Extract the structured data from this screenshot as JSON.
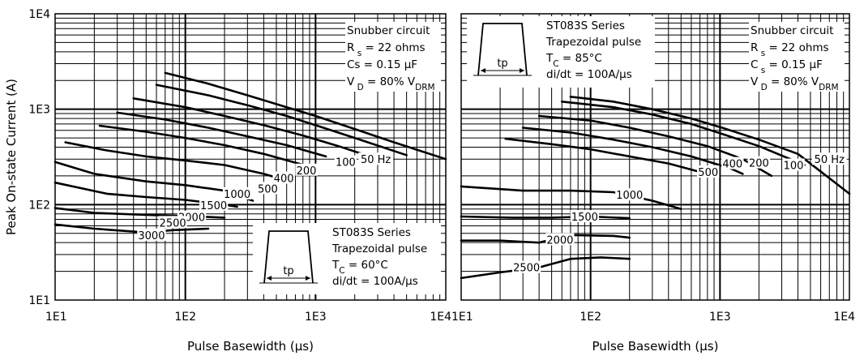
{
  "chart_data": [
    {
      "type": "line",
      "title": "",
      "xlabel": "Pulse Basewidth (µs)",
      "ylabel": "Peak On-state Current (A)",
      "x_scale": "log",
      "y_scale": "log",
      "xlim": [
        10,
        10000
      ],
      "ylim": [
        10,
        10000
      ],
      "x_ticks": [
        "1E1",
        "1E2",
        "1E3",
        "1E4"
      ],
      "y_ticks": [
        "1E1",
        "1E2",
        "1E3",
        "1E4"
      ],
      "grid": true,
      "annotations": {
        "snubber": [
          "Snubber circuit",
          "R s = 22 ohms",
          "Cs  = 0.15 µF",
          "V D = 80% V DRM"
        ],
        "series_info": [
          "ST083S Series",
          "Trapezoidal pulse",
          "T C = 60°C",
          "di/dt = 100A/µs"
        ],
        "pulse_label": "tp"
      },
      "series": [
        {
          "name": "50 Hz",
          "label_at": [
            2900,
            300
          ],
          "points": [
            [
              70,
              2400
            ],
            [
              150,
              1850
            ],
            [
              300,
              1400
            ],
            [
              600,
              1050
            ],
            [
              1000,
              850
            ],
            [
              2000,
              620
            ],
            [
              4000,
              450
            ],
            [
              10000,
              300
            ]
          ]
        },
        {
          "name": "100",
          "label_at": [
            1700,
            280
          ],
          "points": [
            [
              60,
              1800
            ],
            [
              150,
              1400
            ],
            [
              300,
              1100
            ],
            [
              600,
              850
            ],
            [
              1000,
              680
            ],
            [
              2000,
              500
            ],
            [
              5000,
              330
            ]
          ]
        },
        {
          "name": "200",
          "label_at": [
            850,
            230
          ],
          "points": [
            [
              40,
              1300
            ],
            [
              100,
              1050
            ],
            [
              200,
              850
            ],
            [
              400,
              680
            ],
            [
              800,
              530
            ],
            [
              1500,
              410
            ],
            [
              2800,
              310
            ]
          ]
        },
        {
          "name": "400",
          "label_at": [
            570,
            190
          ],
          "points": [
            [
              30,
              920
            ],
            [
              70,
              780
            ],
            [
              150,
              640
            ],
            [
              300,
              520
            ],
            [
              600,
              420
            ],
            [
              1200,
              320
            ]
          ]
        },
        {
          "name": "500",
          "label_at": [
            430,
            148
          ],
          "points": [
            [
              22,
              670
            ],
            [
              50,
              580
            ],
            [
              100,
              500
            ],
            [
              200,
              420
            ],
            [
              400,
              340
            ],
            [
              900,
              250
            ]
          ]
        },
        {
          "name": "1000",
          "label_at": [
            250,
            130
          ],
          "points": [
            [
              12,
              450
            ],
            [
              25,
              370
            ],
            [
              50,
              320
            ],
            [
              100,
              290
            ],
            [
              200,
              260
            ],
            [
              400,
              210
            ],
            [
              550,
              185
            ]
          ]
        },
        {
          "name": "1500",
          "label_at": [
            165,
            99
          ],
          "points": [
            [
              10,
              280
            ],
            [
              20,
              210
            ],
            [
              50,
              175
            ],
            [
              100,
              160
            ],
            [
              200,
              140
            ],
            [
              330,
              110
            ]
          ]
        },
        {
          "name": "2000",
          "label_at": [
            112,
            74
          ],
          "points": [
            [
              10,
              170
            ],
            [
              25,
              130
            ],
            [
              50,
              120
            ],
            [
              100,
              112
            ],
            [
              200,
              100
            ],
            [
              250,
              95
            ]
          ]
        },
        {
          "name": "2500",
          "label_at": [
            80,
            65
          ],
          "points": [
            [
              10,
              92
            ],
            [
              20,
              82
            ],
            [
              50,
              78
            ],
            [
              100,
              76
            ],
            [
              200,
              73
            ]
          ]
        },
        {
          "name": "3000",
          "label_at": [
            55,
            48
          ],
          "points": [
            [
              10,
              62
            ],
            [
              20,
              56
            ],
            [
              50,
              51
            ],
            [
              80,
              54
            ],
            [
              150,
              56
            ]
          ]
        }
      ]
    },
    {
      "type": "line",
      "title": "",
      "xlabel": "Pulse Basewidth (µs)",
      "ylabel": "",
      "x_scale": "log",
      "y_scale": "log",
      "xlim": [
        10,
        10000
      ],
      "ylim": [
        10,
        10000
      ],
      "x_ticks": [
        "1E1",
        "1E2",
        "1E3",
        "1E4"
      ],
      "y_ticks": [],
      "grid": true,
      "annotations": {
        "snubber": [
          "Snubber circuit",
          "R s = 22 ohms",
          "C s  = 0.15 µF",
          "V D = 80% V DRM"
        ],
        "series_info": [
          "ST083S Series",
          "Trapezoidal pulse",
          "T C = 85°C",
          "di/dt = 100A/µs"
        ],
        "pulse_label": "tp"
      },
      "series": [
        {
          "name": "50 Hz",
          "label_at": [
            7000,
            300
          ],
          "points": [
            [
              70,
              1350
            ],
            [
              150,
              1200
            ],
            [
              300,
              1000
            ],
            [
              600,
              800
            ],
            [
              1000,
              650
            ],
            [
              2000,
              480
            ],
            [
              4000,
              340
            ],
            [
              10000,
              130
            ]
          ]
        },
        {
          "name": "100",
          "label_at": [
            3700,
            260
          ],
          "points": [
            [
              60,
              1200
            ],
            [
              150,
              1050
            ],
            [
              300,
              880
            ],
            [
              600,
              700
            ],
            [
              1000,
              560
            ],
            [
              2000,
              410
            ],
            [
              4500,
              260
            ]
          ]
        },
        {
          "name": "200",
          "label_at": [
            2000,
            275
          ],
          "points": [
            [
              40,
              850
            ],
            [
              100,
              760
            ],
            [
              200,
              640
            ],
            [
              400,
              520
            ],
            [
              800,
              410
            ],
            [
              1500,
              300
            ],
            [
              2500,
              200
            ]
          ]
        },
        {
          "name": "400",
          "label_at": [
            1250,
            270
          ],
          "points": [
            [
              30,
              640
            ],
            [
              70,
              570
            ],
            [
              150,
              480
            ],
            [
              300,
              400
            ],
            [
              600,
              320
            ],
            [
              1200,
              240
            ],
            [
              1500,
              210
            ]
          ]
        },
        {
          "name": "500",
          "label_at": [
            810,
            220
          ],
          "points": [
            [
              22,
              490
            ],
            [
              50,
              430
            ],
            [
              100,
              380
            ],
            [
              200,
              320
            ],
            [
              400,
              270
            ],
            [
              700,
              220
            ]
          ]
        },
        {
          "name": "1000",
          "label_at": [
            200,
            127
          ],
          "points": [
            [
              10,
              155
            ],
            [
              30,
              140
            ],
            [
              70,
              140
            ],
            [
              150,
              135
            ],
            [
              300,
              110
            ],
            [
              500,
              90
            ]
          ]
        },
        {
          "name": "1500",
          "label_at": [
            90,
            75
          ],
          "points": [
            [
              10,
              75
            ],
            [
              25,
              73
            ],
            [
              50,
              73
            ],
            [
              100,
              75
            ],
            [
              200,
              72
            ]
          ]
        },
        {
          "name": "2000",
          "label_at": [
            58,
            43
          ],
          "points": [
            [
              10,
              42
            ],
            [
              20,
              42
            ],
            [
              40,
              40
            ],
            [
              70,
              48
            ],
            [
              150,
              47
            ],
            [
              200,
              45
            ]
          ]
        },
        {
          "name": "2500",
          "label_at": [
            32,
            22
          ],
          "points": [
            [
              10,
              17
            ],
            [
              20,
              19.5
            ],
            [
              40,
              22
            ],
            [
              70,
              27
            ],
            [
              120,
              28
            ],
            [
              200,
              27
            ]
          ]
        }
      ]
    }
  ]
}
